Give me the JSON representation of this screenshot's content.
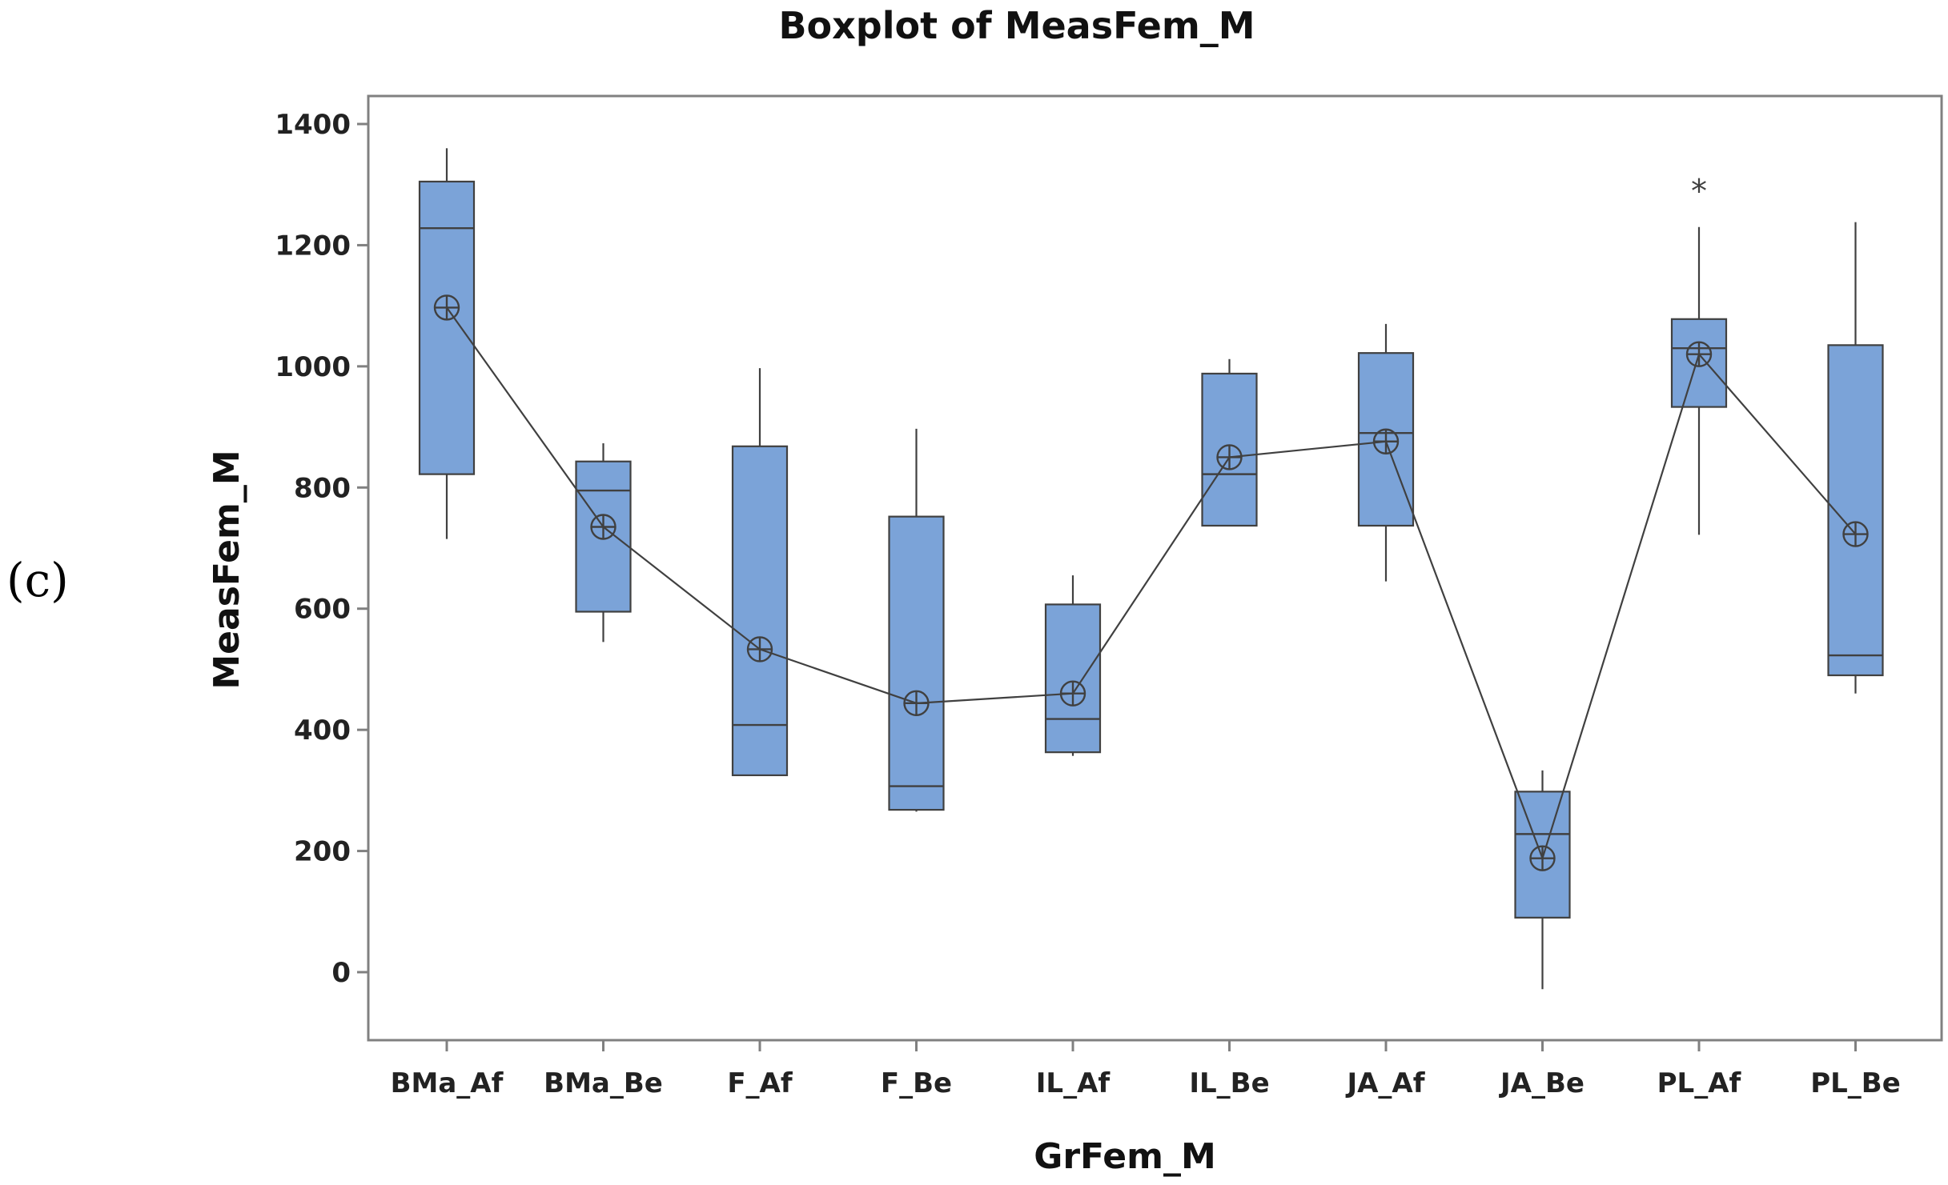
{
  "panel_label": "(c)",
  "colors": {
    "box_fill": "#7BA3D8",
    "box_stroke": "#404040",
    "line": "#404040",
    "frame": "#808080"
  },
  "chart_data": {
    "type": "boxplot",
    "title": "Boxplot of MeasFem_M",
    "xlabel": "GrFem_M",
    "ylabel": "MeasFem_M",
    "ylim": [
      -110,
      1450
    ],
    "yticks": [
      0,
      200,
      400,
      600,
      800,
      1000,
      1200,
      1400
    ],
    "categories": [
      "BMa_Af",
      "BMa_Be",
      "F_Af",
      "F_Be",
      "IL_Af",
      "IL_Be",
      "JA_Af",
      "JA_Be",
      "PL_Af",
      "PL_Be"
    ],
    "boxes": [
      {
        "whisker_low": 715,
        "q1": 822,
        "median": 1228,
        "q3": 1305,
        "whisker_high": 1360,
        "mean": 1097,
        "outliers": []
      },
      {
        "whisker_low": 545,
        "q1": 595,
        "median": 795,
        "q3": 843,
        "whisker_high": 873,
        "mean": 735,
        "outliers": []
      },
      {
        "whisker_low": 325,
        "q1": 325,
        "median": 408,
        "q3": 868,
        "whisker_high": 997,
        "mean": 533,
        "outliers": []
      },
      {
        "whisker_low": 265,
        "q1": 268,
        "median": 307,
        "q3": 752,
        "whisker_high": 897,
        "mean": 444,
        "outliers": []
      },
      {
        "whisker_low": 357,
        "q1": 363,
        "median": 418,
        "q3": 607,
        "whisker_high": 655,
        "mean": 460,
        "outliers": []
      },
      {
        "whisker_low": 737,
        "q1": 737,
        "median": 822,
        "q3": 988,
        "whisker_high": 1012,
        "mean": 850,
        "outliers": []
      },
      {
        "whisker_low": 645,
        "q1": 737,
        "median": 890,
        "q3": 1022,
        "whisker_high": 1070,
        "mean": 876,
        "outliers": []
      },
      {
        "whisker_low": -28,
        "q1": 90,
        "median": 228,
        "q3": 298,
        "whisker_high": 333,
        "mean": 188,
        "outliers": []
      },
      {
        "whisker_low": 722,
        "q1": 933,
        "median": 1030,
        "q3": 1078,
        "whisker_high": 1230,
        "mean": 1020,
        "outliers": [
          1300
        ]
      },
      {
        "whisker_low": 460,
        "q1": 490,
        "median": 523,
        "q3": 1035,
        "whisker_high": 1238,
        "mean": 723,
        "outliers": []
      }
    ]
  }
}
